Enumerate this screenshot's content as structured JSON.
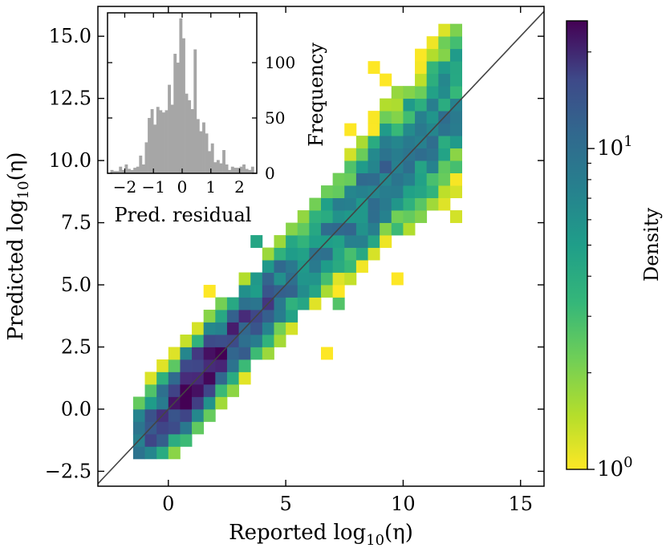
{
  "chart_data": [
    {
      "type": "heatmap",
      "name": "main-2d-histogram",
      "xlabel": "Reported log10(η)",
      "ylabel": "Predicted log10(η)",
      "xlabel_parts": {
        "pre": "Reported log",
        "sub": "10",
        "post": "(η)"
      },
      "ylabel_parts": {
        "pre": "Predicted log",
        "sub": "10",
        "post": "(η)"
      },
      "xlim": [
        -3,
        16
      ],
      "ylim": [
        -3.1,
        16.2
      ],
      "xticks": [
        0,
        5,
        10,
        15
      ],
      "xtick_labels": [
        "0",
        "5",
        "10",
        "15"
      ],
      "yticks": [
        -2.5,
        0,
        2.5,
        5,
        7.5,
        10,
        12.5,
        15
      ],
      "ytick_labels": [
        "−2.5",
        "0.0",
        "2.5",
        "5.0",
        "7.5",
        "10.0",
        "12.5",
        "15.0"
      ],
      "bin_width": [
        0.5,
        0.5
      ],
      "reference_line": "y = x",
      "colorbar": {
        "label": "Density",
        "scale": "log",
        "range": [
          1,
          25
        ],
        "colormap": "viridis_r",
        "ticks": [
          1,
          10
        ],
        "tick_labels": {
          "base": "10",
          "exp": [
            "0",
            "1"
          ]
        }
      },
      "approx_density_trend": "counts ≈1–25 per bin, densest near (0.5–3, 0.5–3), main ridge along y≈x with sparse scatter above and below"
    },
    {
      "type": "bar",
      "name": "inset-residual-histogram",
      "xlabel": "Pred. residual",
      "ylabel": "Frequency",
      "xlim": [
        -2.6,
        2.6
      ],
      "ylim": [
        0,
        145
      ],
      "xticks": [
        -2,
        -1,
        0,
        1,
        2
      ],
      "xtick_labels": [
        "−2",
        "−1",
        "0",
        "1",
        "2"
      ],
      "yticks": [
        0,
        50,
        100
      ],
      "ytick_labels": [
        "0",
        "50",
        "100"
      ],
      "bin_width": 0.1,
      "bin_starts": [
        -2.5,
        -2.4,
        -2.3,
        -2.2,
        -2.1,
        -2.0,
        -1.9,
        -1.8,
        -1.7,
        -1.6,
        -1.5,
        -1.4,
        -1.3,
        -1.2,
        -1.1,
        -1.0,
        -0.9,
        -0.8,
        -0.7,
        -0.6,
        -0.5,
        -0.4,
        -0.3,
        -0.2,
        -0.1,
        0.0,
        0.1,
        0.2,
        0.3,
        0.4,
        0.5,
        0.6,
        0.7,
        0.8,
        0.9,
        1.0,
        1.1,
        1.2,
        1.3,
        1.4,
        1.5,
        1.6,
        1.7,
        1.8,
        1.9,
        2.0,
        2.1,
        2.2,
        2.3,
        2.4
      ],
      "values": [
        3,
        2,
        2,
        6,
        3,
        8,
        4,
        3,
        5,
        6,
        16,
        8,
        28,
        50,
        58,
        44,
        60,
        57,
        55,
        57,
        80,
        62,
        108,
        100,
        140,
        122,
        72,
        66,
        58,
        112,
        49,
        38,
        46,
        36,
        20,
        27,
        10,
        12,
        9,
        21,
        8,
        3,
        6,
        5,
        5,
        6,
        8,
        4,
        3,
        6
      ]
    }
  ]
}
